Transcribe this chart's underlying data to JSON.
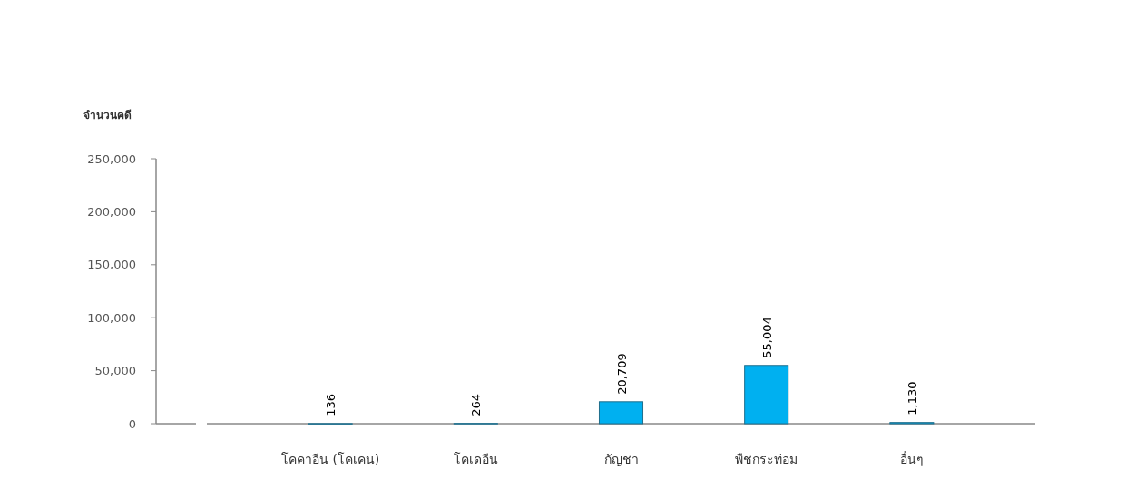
{
  "chart_data": {
    "type": "bar",
    "ylabel": "จำนวนคดี",
    "categories": [
      "โคคาอีน (โคเคน)",
      "โคเดอีน",
      "กัญชา",
      "พืชกระท่อม",
      "อื่นๆ"
    ],
    "values": [
      136,
      264,
      20709,
      55004,
      1130
    ],
    "color": "#00b0f0",
    "ylim": [
      0,
      250000
    ],
    "yticks": [
      {
        "value": 0,
        "label": "0"
      },
      {
        "value": 50000,
        "label": "50,000"
      },
      {
        "value": 100000,
        "label": "100,000"
      },
      {
        "value": 150000,
        "label": "150,000"
      },
      {
        "value": 200000,
        "label": "200,000"
      },
      {
        "value": 250000,
        "label": "250,000"
      }
    ],
    "value_labels": [
      "136",
      "264",
      "20,709",
      "55,004",
      "1,130"
    ]
  }
}
